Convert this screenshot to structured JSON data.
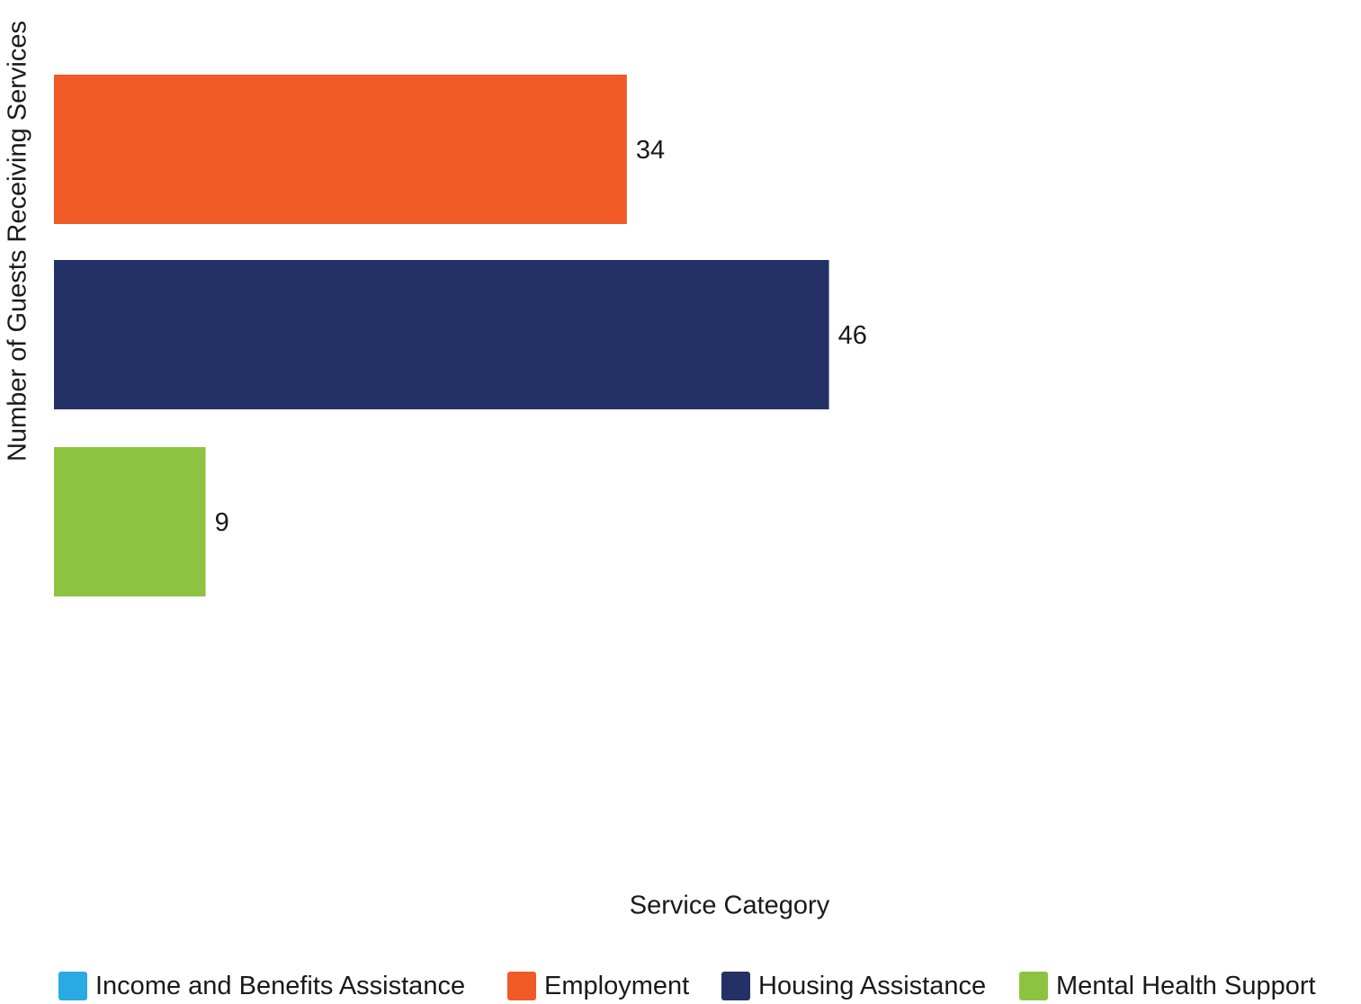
{
  "chart_data": {
    "type": "bar",
    "orientation": "horizontal",
    "categories": [
      "Employment",
      "Housing Assistance",
      "Mental Health Support"
    ],
    "values": [
      34,
      46,
      9
    ],
    "colors": [
      "#f05a24",
      "#243166",
      "#8cc441"
    ],
    "xlabel": "Service Category",
    "ylabel": "Number of Guests Receiving Services",
    "grid": false,
    "legend_position": "bottom",
    "data_labels": [
      "34",
      "46",
      "9"
    ],
    "legend": [
      {
        "label": "Income and Benefits Assistance",
        "color": "#29aae2"
      },
      {
        "label": "Employment",
        "color": "#f05a24"
      },
      {
        "label": "Housing Assistance",
        "color": "#243166"
      },
      {
        "label": "Mental Health Support",
        "color": "#8cc441"
      }
    ]
  }
}
